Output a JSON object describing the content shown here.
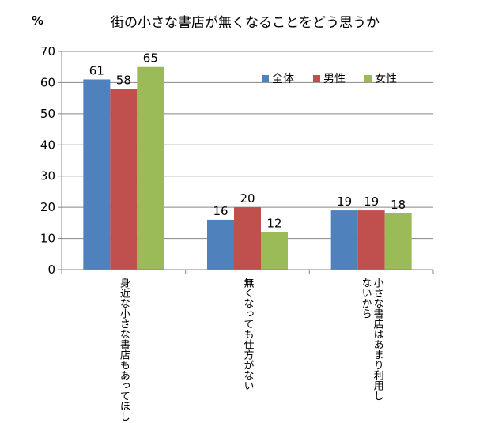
{
  "chart_data": {
    "type": "bar",
    "title": "街の小さな書店が無くなることをどう思うか",
    "ylabel": "%",
    "xlabel": "",
    "ylim": [
      0,
      70
    ],
    "yticks": [
      0,
      10,
      20,
      30,
      40,
      50,
      60,
      70
    ],
    "grid": true,
    "legend_position": "top-right",
    "categories": [
      [
        "身近な小さな書店もあってほしい"
      ],
      [
        "無くなっても仕方がない"
      ],
      [
        "小さな書店はあまり利用し",
        "ないから"
      ]
    ],
    "series": [
      {
        "name": "全体",
        "color": "#4F81BD",
        "values": [
          61,
          16,
          19
        ]
      },
      {
        "name": "男性",
        "color": "#C0504D",
        "values": [
          58,
          20,
          19
        ]
      },
      {
        "name": "女性",
        "color": "#9BBB59",
        "values": [
          65,
          12,
          18
        ]
      }
    ]
  }
}
